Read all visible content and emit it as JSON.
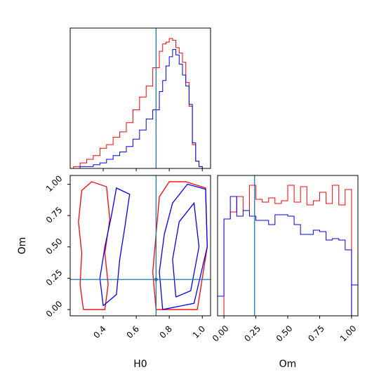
{
  "chart_data": {
    "type": "corner",
    "colors": {
      "series_a": "#ff0000",
      "series_b": "#0000ff",
      "truth": "#1f77b4"
    },
    "parameters": [
      "H0",
      "Om"
    ],
    "truth": {
      "H0": 0.72,
      "Om": 0.24
    },
    "panels": [
      {
        "name": "H0-marginal",
        "type": "histogram-step",
        "x_range": [
          0.2,
          1.05
        ],
        "bin_edges": [
          0.22,
          0.26,
          0.3,
          0.34,
          0.38,
          0.42,
          0.46,
          0.5,
          0.54,
          0.58,
          0.62,
          0.66,
          0.7,
          0.74,
          0.76,
          0.78,
          0.8,
          0.82,
          0.84,
          0.86,
          0.88,
          0.9,
          0.92,
          0.94,
          0.96,
          0.98,
          1.0,
          1.02
        ],
        "series_red": [
          1,
          3,
          5,
          7,
          11,
          13,
          17,
          20,
          25,
          32,
          39,
          45,
          55,
          64,
          68,
          69,
          71,
          70,
          66,
          63,
          58,
          47,
          34,
          13,
          4,
          1,
          0
        ],
        "series_blue": [
          0,
          1,
          1,
          2,
          3,
          5,
          7,
          9,
          12,
          16,
          21,
          27,
          32,
          42,
          48,
          56,
          61,
          65,
          62,
          57,
          51,
          45,
          35,
          14,
          4,
          1,
          0
        ]
      },
      {
        "name": "H0-Om-contour",
        "type": "contour",
        "x_range": [
          0.2,
          1.05
        ],
        "y_range": [
          -0.05,
          1.07
        ],
        "x_ticks": [
          "0.4",
          "0.6",
          "0.8",
          "1.0"
        ],
        "x_tick_values": [
          0.4,
          0.6,
          0.8,
          1.0
        ],
        "y_ticks": [
          "0.00",
          "0.25",
          "0.50",
          "0.75",
          "1.00"
        ],
        "y_tick_values": [
          0.0,
          0.25,
          0.5,
          0.75,
          1.0
        ],
        "xlabel": "H0",
        "ylabel": "Om",
        "contours_red": [
          [
            [
              0.28,
              0.0
            ],
            [
              0.26,
              0.2
            ],
            [
              0.27,
              0.45
            ],
            [
              0.25,
              0.7
            ],
            [
              0.27,
              0.95
            ],
            [
              0.33,
              1.02
            ],
            [
              0.42,
              0.98
            ],
            [
              0.44,
              0.72
            ],
            [
              0.41,
              0.45
            ],
            [
              0.43,
              0.2
            ],
            [
              0.41,
              0.0
            ],
            [
              0.28,
              0.0
            ]
          ],
          [
            [
              0.72,
              0.0
            ],
            [
              0.7,
              0.3
            ],
            [
              0.72,
              0.6
            ],
            [
              0.74,
              0.9
            ],
            [
              0.8,
              1.02
            ],
            [
              0.9,
              1.02
            ],
            [
              1.02,
              0.97
            ],
            [
              1.03,
              0.5
            ],
            [
              0.97,
              0.0
            ],
            [
              0.72,
              0.0
            ]
          ]
        ],
        "contours_blue": [
          [
            [
              0.4,
              0.03
            ],
            [
              0.38,
              0.25
            ],
            [
              0.41,
              0.5
            ],
            [
              0.45,
              0.75
            ],
            [
              0.48,
              0.97
            ],
            [
              0.56,
              0.92
            ],
            [
              0.53,
              0.65
            ],
            [
              0.5,
              0.4
            ],
            [
              0.48,
              0.12
            ],
            [
              0.4,
              0.03
            ]
          ],
          [
            [
              0.76,
              0.0
            ],
            [
              0.74,
              0.3
            ],
            [
              0.77,
              0.6
            ],
            [
              0.82,
              0.85
            ],
            [
              0.91,
              1.0
            ],
            [
              1.02,
              0.96
            ],
            [
              1.03,
              0.5
            ],
            [
              0.95,
              0.05
            ],
            [
              0.76,
              0.0
            ]
          ],
          [
            [
              0.84,
              0.1
            ],
            [
              0.82,
              0.4
            ],
            [
              0.86,
              0.7
            ],
            [
              0.95,
              0.85
            ],
            [
              0.98,
              0.5
            ],
            [
              0.93,
              0.15
            ],
            [
              0.84,
              0.1
            ]
          ]
        ]
      },
      {
        "name": "Om-marginal",
        "type": "histogram-step",
        "x_range": [
          -0.05,
          1.05
        ],
        "y_range": [
          0,
          1
        ],
        "x_ticks": [
          "0.00",
          "0.25",
          "0.50",
          "0.75",
          "1.00"
        ],
        "x_tick_values": [
          0.0,
          0.25,
          0.5,
          0.75,
          1.0
        ],
        "xlabel": "Om",
        "bin_edges": [
          -0.05,
          0.0,
          0.05,
          0.1,
          0.15,
          0.2,
          0.25,
          0.3,
          0.35,
          0.4,
          0.45,
          0.5,
          0.55,
          0.6,
          0.65,
          0.7,
          0.75,
          0.8,
          0.85,
          0.9,
          0.95,
          1.0
        ],
        "series_red": [
          0.0,
          0.69,
          0.74,
          0.85,
          0.75,
          0.93,
          0.83,
          0.81,
          0.84,
          0.8,
          0.82,
          0.93,
          0.81,
          0.92,
          0.79,
          0.82,
          0.88,
          0.8,
          0.93,
          0.79,
          0.9
        ],
        "series_blue": [
          0.14,
          0.69,
          0.85,
          0.71,
          0.75,
          0.71,
          0.68,
          0.68,
          0.65,
          0.72,
          0.72,
          0.71,
          0.65,
          0.58,
          0.58,
          0.61,
          0.6,
          0.54,
          0.55,
          0.54,
          0.47
        ],
        "tail_blue": 0.22
      }
    ]
  }
}
